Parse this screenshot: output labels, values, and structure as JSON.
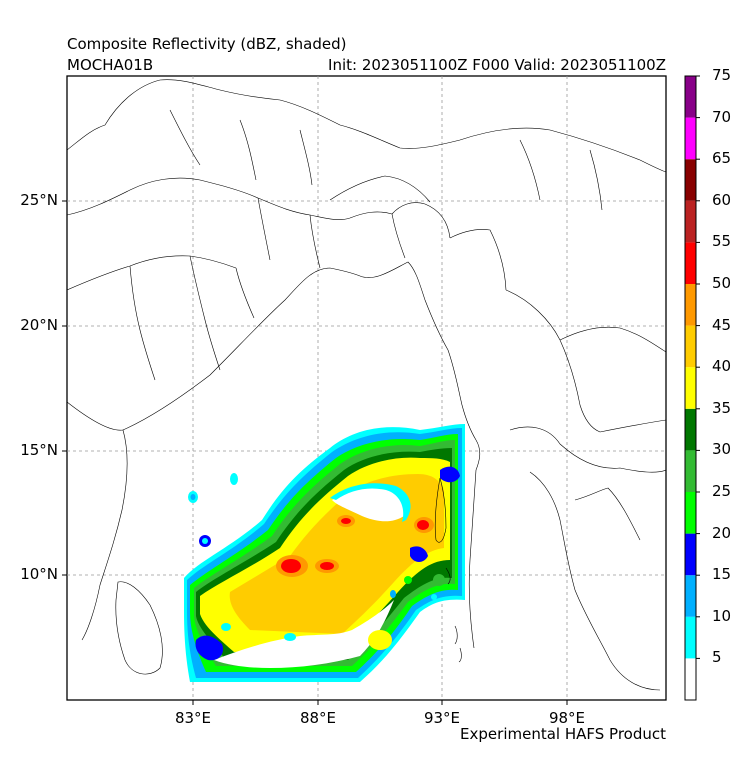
{
  "header": {
    "title": "Composite Reflectivity (dBZ, shaded)",
    "storm_id": "MOCHA01B",
    "valid_line": "Init: 2023051100Z F000 Valid: 2023051100Z"
  },
  "footer": {
    "product": "Experimental HAFS Product"
  },
  "axes": {
    "lat_labels": [
      "25°N",
      "20°N",
      "15°N",
      "10°N"
    ],
    "lon_labels": [
      "83°E",
      "88°E",
      "93°E",
      "98°E"
    ]
  },
  "colorbar": {
    "ticks": [
      "5",
      "10",
      "15",
      "20",
      "25",
      "30",
      "35",
      "40",
      "45",
      "50",
      "55",
      "60",
      "65",
      "70",
      "75"
    ],
    "colors": [
      "#ffffff",
      "#00ffff",
      "#00b0ff",
      "#0000ff",
      "#00ff00",
      "#33bb33",
      "#007700",
      "#ffff00",
      "#ffcc00",
      "#ff9900",
      "#ff0000",
      "#bb2222",
      "#880000",
      "#ff00ff",
      "#880088"
    ]
  }
}
